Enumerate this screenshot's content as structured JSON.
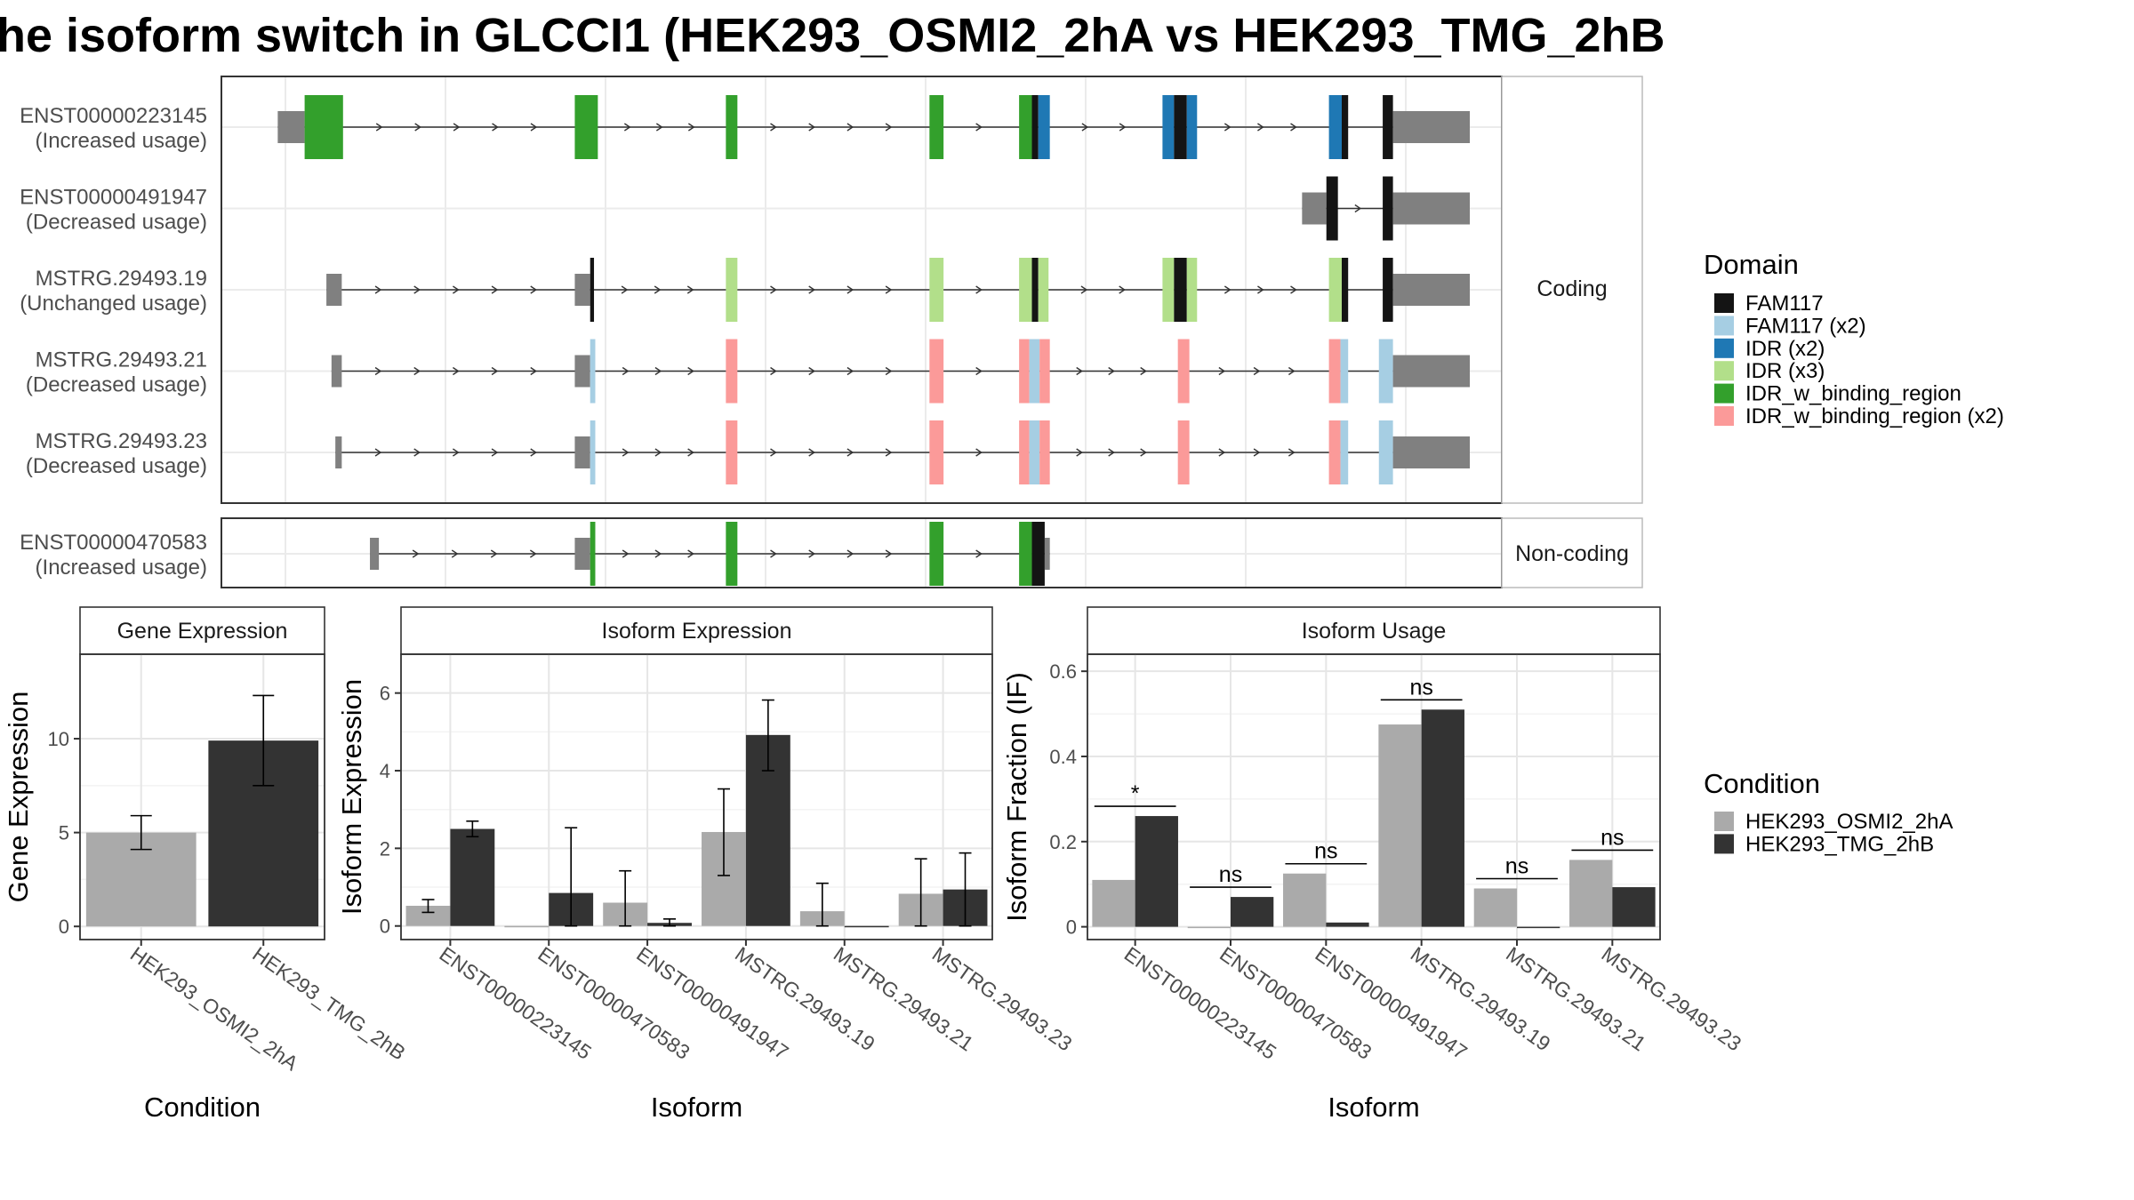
{
  "title": "he isoform switch in GLCCI1 (HEK293_OSMI2_2hA vs HEK293_TMG_2hB",
  "colors": {
    "FAM117": "#141414",
    "FAM117 (x2)": "#a6cee3",
    "IDR (x2)": "#1f78b4",
    "IDR (x3)": "#b2df8a",
    "IDR_w_binding_region": "#33a02c",
    "IDR_w_binding_region (x2)": "#fb9a99",
    "utr": "#808080",
    "cond_a": "#aaaaaa",
    "cond_b": "#333333"
  },
  "domain_legend": {
    "title": "Domain",
    "items": [
      "FAM117",
      "FAM117 (x2)",
      "IDR (x2)",
      "IDR (x3)",
      "IDR_w_binding_region",
      "IDR_w_binding_region (x2)"
    ]
  },
  "condition_legend": {
    "title": "Condition",
    "items": [
      "HEK293_OSMI2_2hA",
      "HEK293_TMG_2hB"
    ]
  },
  "isoform_structure": {
    "coding_label": "Coding",
    "noncoding_label": "Non-coding",
    "genome_range": [
      0,
      100
    ],
    "coding": [
      {
        "id": "ENST00000223145",
        "usage": "(Increased usage)",
        "segments": [
          [
            4.4,
            6.5,
            "utr"
          ],
          [
            6.5,
            9.5,
            "IDR_w_binding_region"
          ],
          [
            27.6,
            29.4,
            "IDR_w_binding_region"
          ],
          [
            39.4,
            40.3,
            "IDR_w_binding_region"
          ],
          [
            55.3,
            56.4,
            "IDR_w_binding_region"
          ],
          [
            62.3,
            63.3,
            "IDR_w_binding_region"
          ],
          [
            63.3,
            63.8,
            "FAM117"
          ],
          [
            63.8,
            64.7,
            "IDR (x2)"
          ],
          [
            73.5,
            74.4,
            "IDR (x2)"
          ],
          [
            74.4,
            75.4,
            "FAM117"
          ],
          [
            75.4,
            76.2,
            "IDR (x2)"
          ],
          [
            86.5,
            87.5,
            "IDR (x2)"
          ],
          [
            87.5,
            88.0,
            "FAM117"
          ],
          [
            90.7,
            91.5,
            "FAM117"
          ],
          [
            91.5,
            97.5,
            "utr"
          ]
        ]
      },
      {
        "id": "ENST00000491947",
        "usage": "(Decreased usage)",
        "segments": [
          [
            84.4,
            86.3,
            "utr"
          ],
          [
            86.3,
            87.2,
            "FAM117"
          ],
          [
            90.7,
            91.5,
            "FAM117"
          ],
          [
            91.5,
            97.5,
            "utr"
          ]
        ]
      },
      {
        "id": "MSTRG.29493.19",
        "usage": "(Unchanged usage)",
        "segments": [
          [
            8.2,
            9.4,
            "utr"
          ],
          [
            27.6,
            28.8,
            "utr"
          ],
          [
            28.8,
            29.1,
            "FAM117"
          ],
          [
            39.4,
            40.3,
            "IDR (x3)"
          ],
          [
            55.3,
            56.4,
            "IDR (x3)"
          ],
          [
            62.3,
            63.3,
            "IDR (x3)"
          ],
          [
            63.3,
            63.8,
            "FAM117"
          ],
          [
            63.8,
            64.6,
            "IDR (x3)"
          ],
          [
            73.5,
            74.4,
            "IDR (x3)"
          ],
          [
            74.4,
            75.4,
            "FAM117"
          ],
          [
            75.4,
            76.2,
            "IDR (x3)"
          ],
          [
            86.5,
            87.5,
            "IDR (x3)"
          ],
          [
            87.5,
            88.0,
            "FAM117"
          ],
          [
            90.7,
            91.5,
            "FAM117"
          ],
          [
            91.5,
            97.5,
            "utr"
          ]
        ]
      },
      {
        "id": "MSTRG.29493.21",
        "usage": "(Decreased usage)",
        "segments": [
          [
            8.6,
            9.4,
            "utr"
          ],
          [
            27.6,
            28.8,
            "utr"
          ],
          [
            28.8,
            29.2,
            "FAM117 (x2)"
          ],
          [
            39.4,
            40.3,
            "IDR_w_binding_region (x2)"
          ],
          [
            55.3,
            56.4,
            "IDR_w_binding_region (x2)"
          ],
          [
            62.3,
            63.1,
            "IDR_w_binding_region (x2)"
          ],
          [
            63.1,
            63.9,
            "FAM117 (x2)"
          ],
          [
            63.9,
            64.7,
            "IDR_w_binding_region (x2)"
          ],
          [
            74.7,
            75.6,
            "IDR_w_binding_region (x2)"
          ],
          [
            86.5,
            87.4,
            "IDR_w_binding_region (x2)"
          ],
          [
            87.4,
            88.0,
            "FAM117 (x2)"
          ],
          [
            90.4,
            91.5,
            "FAM117 (x2)"
          ],
          [
            91.5,
            97.5,
            "utr"
          ]
        ]
      },
      {
        "id": "MSTRG.29493.23",
        "usage": "(Decreased usage)",
        "segments": [
          [
            8.9,
            9.4,
            "utr"
          ],
          [
            27.6,
            28.8,
            "utr"
          ],
          [
            28.8,
            29.2,
            "FAM117 (x2)"
          ],
          [
            39.4,
            40.3,
            "IDR_w_binding_region (x2)"
          ],
          [
            55.3,
            56.4,
            "IDR_w_binding_region (x2)"
          ],
          [
            62.3,
            63.1,
            "IDR_w_binding_region (x2)"
          ],
          [
            63.1,
            63.9,
            "FAM117 (x2)"
          ],
          [
            63.9,
            64.7,
            "IDR_w_binding_region (x2)"
          ],
          [
            74.7,
            75.6,
            "IDR_w_binding_region (x2)"
          ],
          [
            86.5,
            87.4,
            "IDR_w_binding_region (x2)"
          ],
          [
            87.4,
            88.0,
            "FAM117 (x2)"
          ],
          [
            90.4,
            91.5,
            "FAM117 (x2)"
          ],
          [
            91.5,
            97.5,
            "utr"
          ]
        ]
      }
    ],
    "noncoding": [
      {
        "id": "ENST00000470583",
        "usage": "(Increased usage)",
        "segments": [
          [
            11.6,
            12.3,
            "utr"
          ],
          [
            27.6,
            28.8,
            "utr"
          ],
          [
            28.8,
            29.2,
            "IDR_w_binding_region"
          ],
          [
            39.4,
            40.3,
            "IDR_w_binding_region"
          ],
          [
            55.3,
            56.4,
            "IDR_w_binding_region"
          ],
          [
            62.3,
            63.3,
            "IDR_w_binding_region"
          ],
          [
            63.3,
            64.3,
            "FAM117"
          ],
          [
            64.3,
            64.7,
            "utr"
          ]
        ]
      }
    ]
  },
  "chart_data": [
    {
      "type": "bar",
      "panel": "Gene Expression",
      "xlabel": "Condition",
      "ylabel": "Gene Expression",
      "categories": [
        "HEK293_OSMI2_2hA",
        "HEK293_TMG_2hB"
      ],
      "values": [
        5.0,
        9.9
      ],
      "error_low": [
        4.1,
        7.5
      ],
      "error_high": [
        5.9,
        12.3
      ],
      "ylim": [
        -0.7,
        14.5
      ],
      "yticks": [
        0,
        5,
        10
      ]
    },
    {
      "type": "bar",
      "panel": "Isoform Expression",
      "xlabel": "Isoform",
      "ylabel": "Isoform Expression",
      "categories": [
        "ENST00000223145",
        "ENST00000470583",
        "ENST00000491947",
        "MSTRG.29493.19",
        "MSTRG.29493.21",
        "MSTRG.29493.23"
      ],
      "series": [
        {
          "name": "HEK293_OSMI2_2hA",
          "values": [
            0.52,
            0.0,
            0.6,
            2.42,
            0.38,
            0.83
          ],
          "error_low": [
            0.35,
            0.0,
            0.0,
            1.3,
            0.0,
            0.0
          ],
          "error_high": [
            0.68,
            0.0,
            1.42,
            3.53,
            1.1,
            1.73
          ]
        },
        {
          "name": "HEK293_TMG_2hB",
          "values": [
            2.5,
            0.85,
            0.08,
            4.92,
            0.0,
            0.94
          ],
          "error_low": [
            2.3,
            0.0,
            0.0,
            4.0,
            0.0,
            0.0
          ],
          "error_high": [
            2.7,
            2.53,
            0.18,
            5.82,
            0.0,
            1.88
          ]
        }
      ],
      "ylim": [
        -0.35,
        7.0
      ],
      "yticks": [
        0,
        2,
        4,
        6
      ]
    },
    {
      "type": "bar",
      "panel": "Isoform Usage",
      "xlabel": "Isoform",
      "ylabel": "Isoform Fraction (IF)",
      "categories": [
        "ENST00000223145",
        "ENST00000470583",
        "ENST00000491947",
        "MSTRG.29493.19",
        "MSTRG.29493.21",
        "MSTRG.29493.23"
      ],
      "series": [
        {
          "name": "HEK293_OSMI2_2hA",
          "values": [
            0.11,
            0.0,
            0.125,
            0.475,
            0.09,
            0.157
          ]
        },
        {
          "name": "HEK293_TMG_2hB",
          "values": [
            0.26,
            0.07,
            0.01,
            0.51,
            0.0,
            0.093
          ]
        }
      ],
      "significance": [
        "*",
        "ns",
        "ns",
        "ns",
        "ns",
        "ns"
      ],
      "ylim": [
        -0.03,
        0.64
      ],
      "yticks": [
        0.0,
        0.2,
        0.4,
        0.6
      ]
    }
  ]
}
